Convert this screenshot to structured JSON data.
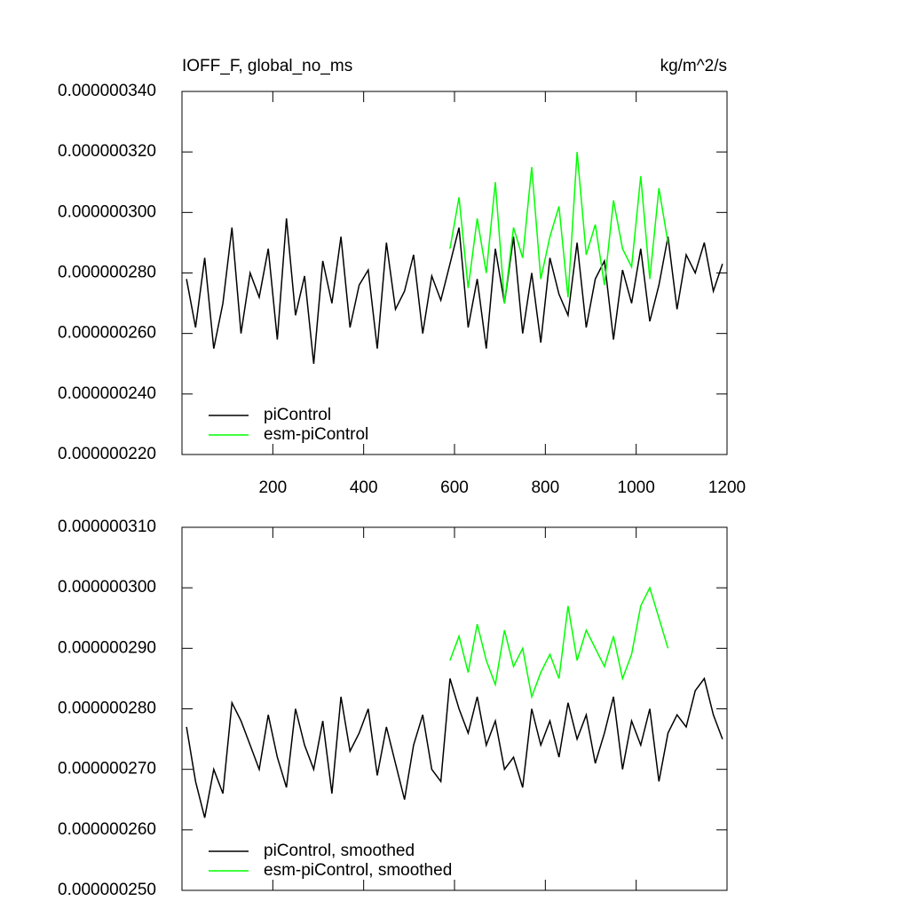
{
  "chart_data": [
    {
      "type": "line",
      "title": "IOFF_F, global_no_ms",
      "units": "kg/m^2/s",
      "x": [
        10,
        30,
        50,
        70,
        90,
        110,
        130,
        150,
        170,
        190,
        210,
        230,
        250,
        270,
        290,
        310,
        330,
        350,
        370,
        390,
        410,
        430,
        450,
        470,
        490,
        510,
        530,
        550,
        570,
        590,
        610,
        630,
        650,
        670,
        690,
        710,
        730,
        750,
        770,
        790,
        810,
        830,
        850,
        870,
        890,
        910,
        930,
        950,
        970,
        990,
        1010,
        1030,
        1050,
        1070,
        1090,
        1110,
        1130,
        1150,
        1170,
        1190
      ],
      "series": [
        {
          "name": "piControl",
          "color": "#000000",
          "values": [
            2.78e-07,
            2.62e-07,
            2.85e-07,
            2.55e-07,
            2.7e-07,
            2.95e-07,
            2.6e-07,
            2.8e-07,
            2.72e-07,
            2.88e-07,
            2.58e-07,
            2.98e-07,
            2.66e-07,
            2.79e-07,
            2.5e-07,
            2.84e-07,
            2.7e-07,
            2.92e-07,
            2.62e-07,
            2.76e-07,
            2.81e-07,
            2.55e-07,
            2.9e-07,
            2.68e-07,
            2.74e-07,
            2.86e-07,
            2.6e-07,
            2.79e-07,
            2.71e-07,
            2.83e-07,
            2.95e-07,
            2.62e-07,
            2.78e-07,
            2.55e-07,
            2.88e-07,
            2.7e-07,
            2.92e-07,
            2.6e-07,
            2.8e-07,
            2.57e-07,
            2.85e-07,
            2.73e-07,
            2.66e-07,
            2.9e-07,
            2.62e-07,
            2.78e-07,
            2.84e-07,
            2.58e-07,
            2.81e-07,
            2.7e-07,
            2.88e-07,
            2.64e-07,
            2.76e-07,
            2.92e-07,
            2.68e-07,
            2.86e-07,
            2.8e-07,
            2.9e-07,
            2.74e-07,
            2.83e-07
          ]
        },
        {
          "name": "esm-piControl",
          "color": "#00ff00",
          "values": [
            null,
            null,
            null,
            null,
            null,
            null,
            null,
            null,
            null,
            null,
            null,
            null,
            null,
            null,
            null,
            null,
            null,
            null,
            null,
            null,
            null,
            null,
            null,
            null,
            null,
            null,
            null,
            null,
            null,
            2.88e-07,
            3.05e-07,
            2.75e-07,
            2.98e-07,
            2.8e-07,
            3.1e-07,
            2.7e-07,
            2.95e-07,
            2.85e-07,
            3.15e-07,
            2.78e-07,
            2.92e-07,
            3.02e-07,
            2.72e-07,
            3.2e-07,
            2.86e-07,
            2.96e-07,
            2.76e-07,
            3.04e-07,
            2.88e-07,
            2.82e-07,
            3.12e-07,
            2.78e-07,
            3.08e-07,
            2.9e-07,
            null,
            null,
            null,
            null,
            null,
            null
          ]
        }
      ],
      "xlim": [
        0,
        1200
      ],
      "xticks": [
        200,
        400,
        600,
        800,
        1000,
        1200
      ],
      "xtick_labels": true,
      "ylim": [
        2.2e-07,
        3.4e-07
      ],
      "yticks": [
        {
          "value": 2.2e-07,
          "label": "0.000000220"
        },
        {
          "value": 2.4e-07,
          "label": "0.000000240"
        },
        {
          "value": 2.6e-07,
          "label": "0.000000260"
        },
        {
          "value": 2.8e-07,
          "label": "0.000000280"
        },
        {
          "value": 3e-07,
          "label": "0.000000300"
        },
        {
          "value": 3.2e-07,
          "label": "0.000000320"
        },
        {
          "value": 3.4e-07,
          "label": "0.000000340"
        }
      ],
      "legend": "lower left",
      "grid": false
    },
    {
      "type": "line",
      "x": [
        10,
        30,
        50,
        70,
        90,
        110,
        130,
        150,
        170,
        190,
        210,
        230,
        250,
        270,
        290,
        310,
        330,
        350,
        370,
        390,
        410,
        430,
        450,
        470,
        490,
        510,
        530,
        550,
        570,
        590,
        610,
        630,
        650,
        670,
        690,
        710,
        730,
        750,
        770,
        790,
        810,
        830,
        850,
        870,
        890,
        910,
        930,
        950,
        970,
        990,
        1010,
        1030,
        1050,
        1070,
        1090,
        1110,
        1130,
        1150,
        1170,
        1190
      ],
      "series": [
        {
          "name": "piControl, smoothed",
          "color": "#000000",
          "values": [
            2.77e-07,
            2.68e-07,
            2.62e-07,
            2.7e-07,
            2.66e-07,
            2.81e-07,
            2.78e-07,
            2.74e-07,
            2.7e-07,
            2.79e-07,
            2.72e-07,
            2.67e-07,
            2.8e-07,
            2.74e-07,
            2.7e-07,
            2.78e-07,
            2.66e-07,
            2.82e-07,
            2.73e-07,
            2.76e-07,
            2.8e-07,
            2.69e-07,
            2.77e-07,
            2.71e-07,
            2.65e-07,
            2.74e-07,
            2.79e-07,
            2.7e-07,
            2.68e-07,
            2.85e-07,
            2.8e-07,
            2.76e-07,
            2.82e-07,
            2.74e-07,
            2.78e-07,
            2.7e-07,
            2.72e-07,
            2.67e-07,
            2.8e-07,
            2.74e-07,
            2.78e-07,
            2.72e-07,
            2.81e-07,
            2.75e-07,
            2.79e-07,
            2.71e-07,
            2.76e-07,
            2.82e-07,
            2.7e-07,
            2.78e-07,
            2.74e-07,
            2.8e-07,
            2.68e-07,
            2.76e-07,
            2.79e-07,
            2.77e-07,
            2.83e-07,
            2.85e-07,
            2.79e-07,
            2.75e-07
          ]
        },
        {
          "name": "esm-piControl, smoothed",
          "color": "#00ff00",
          "values": [
            null,
            null,
            null,
            null,
            null,
            null,
            null,
            null,
            null,
            null,
            null,
            null,
            null,
            null,
            null,
            null,
            null,
            null,
            null,
            null,
            null,
            null,
            null,
            null,
            null,
            null,
            null,
            null,
            null,
            2.88e-07,
            2.92e-07,
            2.86e-07,
            2.94e-07,
            2.88e-07,
            2.84e-07,
            2.93e-07,
            2.87e-07,
            2.9e-07,
            2.82e-07,
            2.86e-07,
            2.89e-07,
            2.85e-07,
            2.97e-07,
            2.88e-07,
            2.93e-07,
            2.9e-07,
            2.87e-07,
            2.92e-07,
            2.85e-07,
            2.89e-07,
            2.97e-07,
            3e-07,
            2.95e-07,
            2.9e-07,
            null,
            null,
            null,
            null,
            null,
            null
          ]
        }
      ],
      "xlim": [
        0,
        1200
      ],
      "xticks": [
        200,
        400,
        600,
        800,
        1000,
        1200
      ],
      "xtick_labels": false,
      "ylim": [
        2.5e-07,
        3.1e-07
      ],
      "yticks": [
        {
          "value": 2.5e-07,
          "label": "0.000000250"
        },
        {
          "value": 2.6e-07,
          "label": "0.000000260"
        },
        {
          "value": 2.7e-07,
          "label": "0.000000270"
        },
        {
          "value": 2.8e-07,
          "label": "0.000000280"
        },
        {
          "value": 2.9e-07,
          "label": "0.000000290"
        },
        {
          "value": 3e-07,
          "label": "0.000000300"
        },
        {
          "value": 3.1e-07,
          "label": "0.000000310"
        }
      ],
      "legend": "lower left",
      "grid": false
    }
  ]
}
